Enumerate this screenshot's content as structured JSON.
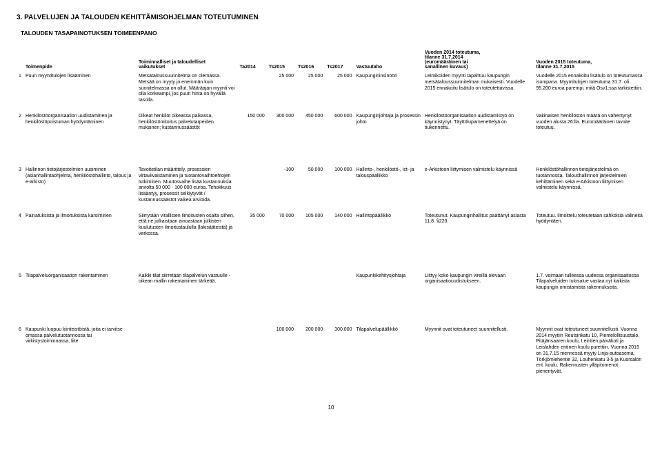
{
  "section_title": "3. PALVELUJEN JA TALOUDEN KEHITTÄMISOHJELMAN TOTEUTUMINEN",
  "subtitle": "TALOUDEN TASAPAINOTUKSEN TOIMEENPANO",
  "headers": {
    "toimenpide": "Toimenpide",
    "vaikutukset_l1": "Toiminnalliset ja taloudelliset",
    "vaikutukset_l2": "vaikutukset",
    "ta2014": "Ta2014",
    "ts2015": "Ts2015",
    "ts2016": "Ts2016",
    "ts2017": "Ts2017",
    "vastuutaho": "Vastuutaho",
    "tot2014_l1": "Vuoden 2014 toteutuma,",
    "tot2014_l2": "tilanne 31.7.2014",
    "tot2014_l3": "(euromääräinen tai",
    "tot2014_l4": "sanallinen kuvaus)",
    "tot2015_l1": "Vuoden 2015 toteutuma,",
    "tot2015_l2": "tilanne 31.7.2015"
  },
  "rows": [
    {
      "n": "1",
      "toimenpide": "Puun myyntitulojen lisääminen",
      "vaikutukset": "Metsätaloussuunnitelma on olemassa. Metsää on myyty jo enemmän kuin sunnitelmassa on ollut. Määräajan myynti voi olla korkeampi, jos puun hinta on hyvällä tasolla.",
      "ta2014": "",
      "ts2015": "25 000",
      "ts2016": "25 000",
      "ts2017": "25 000",
      "vastuutaho": "Kaupungininsinööri",
      "tot2014": "Leimikoiden myynti tapahtuu kaupungin metsätaloussuunnitelman mukaisesti. Vuodelle 2015 ennakoitu lisätulo on toteutettavissa.",
      "tot2015": "Vuodelle 2015 ennakoitu lisätulo on toteutumassa isompana. Myyntitulojen toteutuma 31.7. oli 95.200 euroa parempi, mitä Osv1:ssa tarkistettiin."
    },
    {
      "n": "2",
      "toimenpide": "Henkilöstöorganisaation uudistaminen ja henkilöstöpoistuman hyödyntäminen",
      "vaikutukset": "Oikeat henkilöt oikeassa paikassa, henkilöstömitoitus palvelutarpeiden mukainen; kustannussäästöt",
      "ta2014": "150 000",
      "ts2015": "300 000",
      "ts2016": "450 000",
      "ts2017": "600 000",
      "vastuutaho": "Kaupunginjohtaja ja prosessin johto",
      "tot2014": "Henkilöstöorganisaation uudistamistyö on käynnistynyt. Täyttölupamenettelyä on tiukennettu.",
      "tot2015": "Vakinaisen henkilöstön määrä on vähentynyt vuoden alusta 26:lla. Euromääräinen tavoite toteutuu."
    },
    {
      "n": "3",
      "toimenpide": "Hallinnon tietojärjestelmien uusiminen (asianhallintaohjelma, henkilöstöhallinto, talous ja e-arkisto)",
      "vaikutukset": "Tavoitetilan määrittely, prosessien virtaviivaistaminen ja tuotantovaihtoehtojen tutkiminen. Muutosvaihe lisää kustannuksia arviolta 50 000 - 100 000 euroa. Tehokkuus lisääntyy, prosessit selkiytyvät / kustannussäästöt vaikea arvioida.",
      "ta2014": "",
      "ts2015": "-100",
      "ts2016": "50 000",
      "ts2017": "100 000",
      "vastuutaho": "Hallinto-, henkilöstö-, ict- ja talouspäällikkö",
      "tot2014": "e-Arkistoon liittymisen valmistelu käynnissä",
      "tot2015": "Henkilöstöhallinnon tietojärjestelmä on tuotannossa. Taloushallinnon järjestelmien kehittäminen sekä e-Arkistoon liittymisen valmistelu käynnissä."
    },
    {
      "n": "4",
      "toimenpide": "Painatuksista ja ilmoituksista karsiminen",
      "vaikutukset": "Siirrytään virallisten ilmoitusten osalta siihen, että ne julkaistaan ainoastaan julkisten kuulutusten ilmoitustaululla (lakisääteistä) ja verkossa.",
      "ta2014": "35 000",
      "ts2015": "70 000",
      "ts2016": "105 000",
      "ts2017": "140 000",
      "vastuutaho": "Hallintopäällikkö",
      "tot2014": "Toteutunut. Kaupunginhallitus päättänyt asiasta 11.8. §220.",
      "tot2015": "Toteutuu. Ilmoittelu toteutetaan sähköisiä välineitä hyödyntäen."
    },
    {
      "n": "5",
      "toimenpide": "Tilapalveluorganisaation rakentaminen",
      "vaikutukset": "Kaikki tilat siirretään tilapalvelun vastuulle - oikean mallin rakentaminen tärkeää.",
      "ta2014": "",
      "ts2015": "",
      "ts2016": "",
      "ts2017": "",
      "vastuutaho": "Kaupunkikehitysjohtaja",
      "tot2014": "Liittyy koko kaupungin vireillä olevaan organisaatiouudistukseen.",
      "tot2015": "1.7. voimaan tulleessa uudessa organisaatiossa Tilapalveluiden tulosalue vastaa nyt kaikista kaupungin omistamista rakennuksista."
    },
    {
      "n": "6",
      "toimenpide": "Kaupunki luopuu kiinteistöistä, joita ei tarvitse omassa palvelutuotannossa tai virkistystoiminnassa, liite",
      "vaikutukset": "",
      "ta2014": "",
      "ts2015": "100 000",
      "ts2016": "200 000",
      "ts2017": "300 000",
      "vastuutaho": "Tilapalvelupäällikkö",
      "tot2014": "Myynnit ovat toteutuneet suunnitellusti.",
      "tot2015": "Myynnit ovat toteutuneet suunnitellusti. Vuonna 2014 myytiin Reutsinkatu 10, Pientelollisuustalo, Pitäjänsaaren koulu, Leiritien päiväkoti ja Leislahden entinen koulu purettiin. Vuonna 2015 on 31.7.15 mennessä myyty Linja-autoasema, Törkjömiehentie 32, Louhenkatu 3-5 ja Kuorsalon ent. koulu. Rakennusten ylläpitomenot pienentyvät."
    }
  ],
  "page_number": "10",
  "style": {
    "background_color": "#ffffff",
    "text_color": "#000000",
    "title_fontsize_pt": 10,
    "subtitle_fontsize_pt": 8.5,
    "body_fontsize_pt": 7,
    "font_family": "Arial"
  }
}
